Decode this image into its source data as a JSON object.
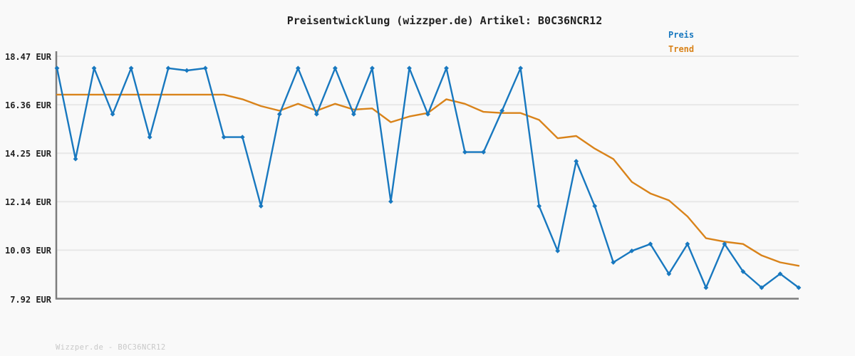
{
  "page": {
    "background": "#f9f9f9",
    "footer_text": "Wizzper.de - B0C36NCR12"
  },
  "colors": {
    "axis": "#7d7d7d",
    "grid": "#e8e8e8",
    "text": "#222222",
    "footer": "#c8c8c8",
    "price_blue": "#1878bf",
    "trend_orange": "#d9831a"
  },
  "chart_data": {
    "type": "line",
    "title": "Preisentwicklung (wizzper.de) Artikel: B0C36NCR12",
    "xlabel": "",
    "ylabel": "",
    "x_points": 41,
    "x_tick_labels_visible": false,
    "ylim": [
      7.92,
      18.47
    ],
    "grid": true,
    "legend_position": "top-right",
    "yticks": [
      {
        "value": 18.47,
        "label": "18.47 EUR"
      },
      {
        "value": 16.36,
        "label": "16.36 EUR"
      },
      {
        "value": 14.25,
        "label": "14.25 EUR"
      },
      {
        "value": 12.14,
        "label": "12.14 EUR"
      },
      {
        "value": 10.03,
        "label": "10.03 EUR"
      },
      {
        "value": 7.92,
        "label": "7.92 EUR"
      }
    ],
    "series": [
      {
        "name": "Preis",
        "color": "#1878bf",
        "markers": true,
        "values": [
          17.95,
          14.0,
          17.95,
          15.95,
          17.95,
          14.95,
          17.95,
          17.85,
          17.95,
          14.95,
          14.95,
          11.95,
          15.95,
          17.95,
          15.95,
          17.95,
          15.95,
          17.95,
          12.15,
          17.95,
          15.95,
          17.95,
          14.3,
          14.3,
          16.1,
          17.95,
          11.95,
          10.0,
          13.9,
          11.95,
          9.5,
          10.0,
          10.3,
          9.0,
          10.3,
          8.4,
          10.3,
          9.1,
          8.4,
          9.0,
          8.4
        ]
      },
      {
        "name": "Trend",
        "color": "#d9831a",
        "markers": false,
        "values": [
          16.8,
          16.8,
          16.8,
          16.8,
          16.8,
          16.8,
          16.8,
          16.8,
          16.8,
          16.8,
          16.6,
          16.3,
          16.1,
          16.4,
          16.1,
          16.4,
          16.15,
          16.2,
          15.6,
          15.85,
          16.0,
          16.6,
          16.4,
          16.05,
          16.0,
          16.0,
          15.7,
          14.9,
          15.0,
          14.45,
          14.0,
          13.0,
          12.5,
          12.2,
          11.5,
          10.55,
          10.4,
          10.3,
          9.8,
          9.5,
          9.35
        ]
      }
    ]
  }
}
